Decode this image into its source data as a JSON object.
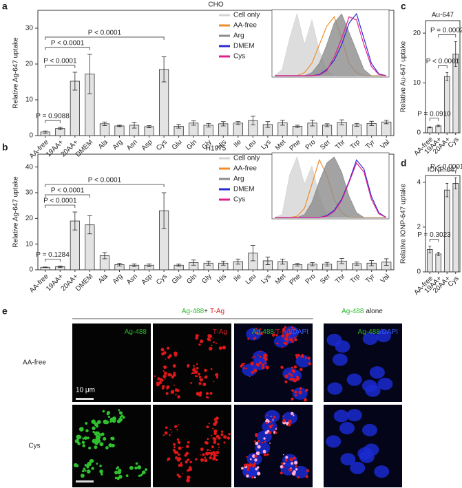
{
  "chart_data": [
    {
      "type": "bar",
      "panel": "a",
      "title": "CHO",
      "ylabel": "Relative Ag-647 uptake",
      "categories": [
        "AA-free",
        "19AA+",
        "20AA+",
        "DMEM",
        "Ala",
        "Arg",
        "Asn",
        "Asp",
        "Cys",
        "Glu",
        "Gln",
        "Gly",
        "His",
        "Ile",
        "Leu",
        "Lys",
        "Met",
        "Phe",
        "Pro",
        "Ser",
        "Thr",
        "Trp",
        "Tyr",
        "Val"
      ],
      "values": [
        1.0,
        2.0,
        15.2,
        17.2,
        3.3,
        2.7,
        2.9,
        2.5,
        18.5,
        2.6,
        3.5,
        2.9,
        3.3,
        3.5,
        4.2,
        3.1,
        3.6,
        2.6,
        3.5,
        2.9,
        3.7,
        3.0,
        3.4,
        3.8
      ],
      "errors": [
        0.3,
        0.3,
        2.5,
        5.5,
        0.5,
        0.2,
        0.8,
        0.3,
        3.5,
        0.5,
        0.6,
        0.5,
        0.6,
        0.4,
        1.2,
        0.8,
        0.7,
        0.3,
        0.8,
        0.4,
        0.7,
        0.4,
        0.6,
        0.5
      ],
      "color": "#e3e3e3",
      "ylim": [
        0,
        35
      ],
      "yticks": [
        0,
        10,
        20,
        30
      ],
      "annotations": [
        {
          "text": "P = 0.9088",
          "from": "AA-free",
          "to": "19AA+"
        },
        {
          "text": "P < 0.0001",
          "from": "AA-free",
          "to": "20AA+"
        },
        {
          "text": "P < 0.0001",
          "from": "AA-free",
          "to": "DMEM"
        },
        {
          "text": "P < 0.0001",
          "from": "AA-free",
          "to": "Cys"
        }
      ],
      "inset": {
        "series": [
          {
            "name": "Cell only",
            "color": "#d4d4d4",
            "filled": true,
            "values": [
              0,
              10,
              60,
              100,
              50,
              90,
              40,
              8,
              0,
              0,
              0,
              0,
              0,
              0,
              0,
              0
            ]
          },
          {
            "name": "AA-free",
            "color": "#f28c28",
            "values": [
              0,
              0,
              0,
              0,
              5,
              20,
              50,
              80,
              95,
              60,
              20,
              5,
              0,
              0,
              0,
              0
            ]
          },
          {
            "name": "Arg",
            "color": "#8c8c8c",
            "filled": true,
            "values": [
              0,
              0,
              0,
              0,
              0,
              5,
              20,
              50,
              85,
              100,
              70,
              40,
              10,
              0,
              0,
              0
            ]
          },
          {
            "name": "DMEM",
            "color": "#2a2ad4",
            "values": [
              0,
              0,
              0,
              0,
              0,
              0,
              2,
              10,
              25,
              50,
              85,
              100,
              60,
              20,
              3,
              0
            ]
          },
          {
            "name": "Cys",
            "color": "#e0208c",
            "values": [
              0,
              0,
              0,
              0,
              0,
              0,
              1,
              8,
              30,
              60,
              95,
              90,
              50,
              15,
              2,
              0
            ]
          }
        ]
      }
    },
    {
      "type": "bar",
      "panel": "b",
      "title": "H1975",
      "ylabel": "Relative Ag-647 uptake",
      "categories": [
        "AA-free",
        "19AA+",
        "20AA+",
        "DMEM",
        "Ala",
        "Arg",
        "Asn",
        "Asp",
        "Cys",
        "Glu",
        "Gln",
        "Gly",
        "His",
        "Ile",
        "Leu",
        "Lys",
        "Met",
        "Phe",
        "Pro",
        "Ser",
        "Thr",
        "Trp",
        "Tyr",
        "Val"
      ],
      "values": [
        1.0,
        1.2,
        19.0,
        17.5,
        5.5,
        2.0,
        1.8,
        1.8,
        23.0,
        1.8,
        2.8,
        2.6,
        2.6,
        3.2,
        6.5,
        3.5,
        3.2,
        2.0,
        2.2,
        2.2,
        3.4,
        2.4,
        2.6,
        3.0
      ],
      "errors": [
        0.1,
        0.3,
        3.5,
        3.5,
        1.2,
        0.5,
        0.5,
        0.5,
        7.0,
        0.4,
        1.0,
        0.8,
        0.8,
        1.0,
        3.0,
        1.5,
        1.0,
        0.5,
        0.6,
        0.7,
        1.0,
        0.6,
        1.0,
        1.3
      ],
      "color": "#e3e3e3",
      "ylim": [
        0,
        45
      ],
      "yticks": [
        0,
        10,
        20,
        30,
        40
      ],
      "annotations": [
        {
          "text": "P = 0.1284",
          "from": "AA-free",
          "to": "19AA+"
        },
        {
          "text": "P < 0.0001",
          "from": "AA-free",
          "to": "20AA+"
        },
        {
          "text": "P < 0.0001",
          "from": "AA-free",
          "to": "DMEM"
        },
        {
          "text": "P < 0.0001",
          "from": "AA-free",
          "to": "Cys"
        }
      ],
      "inset": {
        "series": [
          {
            "name": "Cell only",
            "color": "#d4d4d4",
            "filled": true,
            "values": [
              0,
              5,
              70,
              100,
              55,
              85,
              35,
              6,
              0,
              0,
              0,
              0,
              0,
              0,
              0,
              0
            ]
          },
          {
            "name": "AA-free",
            "color": "#f28c28",
            "values": [
              0,
              0,
              0,
              2,
              15,
              55,
              95,
              70,
              30,
              8,
              0,
              0,
              0,
              0,
              0,
              0
            ]
          },
          {
            "name": "Arg",
            "color": "#8c8c8c",
            "filled": true,
            "values": [
              0,
              0,
              0,
              0,
              5,
              25,
              60,
              90,
              100,
              75,
              35,
              8,
              0,
              0,
              0,
              0
            ]
          },
          {
            "name": "DMEM",
            "color": "#2a2ad4",
            "values": [
              0,
              0,
              0,
              0,
              0,
              0,
              0,
              3,
              12,
              30,
              60,
              95,
              80,
              35,
              8,
              0
            ]
          },
          {
            "name": "Cys",
            "color": "#e0208c",
            "values": [
              0,
              0,
              0,
              0,
              0,
              0,
              0,
              2,
              10,
              28,
              58,
              90,
              75,
              30,
              6,
              0
            ]
          }
        ]
      }
    },
    {
      "type": "bar",
      "panel": "c",
      "title": "Au-647",
      "ylabel": "Relative Au-647 uptake",
      "categories": [
        "AA-free",
        "19AA+",
        "20AA+",
        "Cys"
      ],
      "values": [
        1.1,
        1.4,
        11.3,
        15.8
      ],
      "errors": [
        0.1,
        0.15,
        0.8,
        2.5
      ],
      "color": "#e3e3e3",
      "ylim": [
        0,
        22.5
      ],
      "yticks": [
        0,
        10,
        20
      ],
      "annotations": [
        {
          "text": "P = 0.0910",
          "from": "AA-free",
          "to": "19AA+"
        },
        {
          "text": "P < 0.0001",
          "from": "19AA+",
          "to": "20AA+"
        },
        {
          "text": "P = 0.0002",
          "from": "19AA+",
          "to": "Cys"
        }
      ]
    },
    {
      "type": "bar",
      "panel": "d",
      "title": "IONP-647",
      "ylabel": "Relative IONP-647 uptake",
      "categories": [
        "AA-free",
        "19AA+",
        "20AA+",
        "Cys"
      ],
      "values": [
        1.0,
        0.8,
        3.65,
        3.95
      ],
      "errors": [
        0.15,
        0.07,
        0.3,
        0.25
      ],
      "color": "#e3e3e3",
      "ylim": [
        0,
        4.3
      ],
      "yticks": [
        0,
        2,
        4
      ],
      "annotations": [
        {
          "text": "P = 0.3023",
          "from": "AA-free",
          "to": "19AA+"
        },
        {
          "text": "P < 0.0001",
          "from": "19AA+",
          "to": "Cys"
        }
      ]
    }
  ],
  "panel_e": {
    "panel": "e",
    "header": [
      {
        "text": "Ag-488",
        "color": "#2db82d"
      },
      {
        "text": "+",
        "color": "#222222"
      },
      {
        "text": "T-Ag",
        "color": "#e02020"
      }
    ],
    "side_header": [
      {
        "text": "Ag-488",
        "color": "#2db82d"
      },
      {
        "text": "alone",
        "color": "#222222"
      }
    ],
    "columns": [
      [
        {
          "text": "Ag-488",
          "color": "#2db82d"
        }
      ],
      [
        {
          "text": "T-Ag",
          "color": "#e02020"
        }
      ],
      [
        {
          "text": "Ag-488",
          "color": "#2db82d"
        },
        {
          "text": "/T-Ag",
          "color": "#e02020"
        },
        {
          "text": "/DAPI",
          "color": "#3a5cff"
        }
      ],
      [
        {
          "text": "Ag-488",
          "color": "#2db82d"
        },
        {
          "text": "/DAPI",
          "color": "#3a5cff"
        }
      ]
    ],
    "rows": [
      "AA-free",
      "Cys"
    ],
    "scale_bar": "10 μm"
  }
}
